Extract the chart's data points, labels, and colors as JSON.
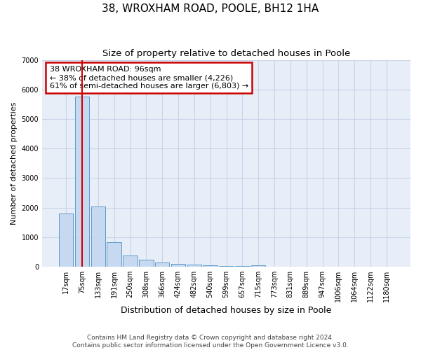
{
  "title": "38, WROXHAM ROAD, POOLE, BH12 1HA",
  "subtitle": "Size of property relative to detached houses in Poole",
  "xlabel": "Distribution of detached houses by size in Poole",
  "ylabel": "Number of detached properties",
  "categories": [
    "17sqm",
    "75sqm",
    "133sqm",
    "191sqm",
    "250sqm",
    "308sqm",
    "366sqm",
    "424sqm",
    "482sqm",
    "540sqm",
    "599sqm",
    "657sqm",
    "715sqm",
    "773sqm",
    "831sqm",
    "889sqm",
    "947sqm",
    "1006sqm",
    "1064sqm",
    "1122sqm",
    "1180sqm"
  ],
  "values": [
    1800,
    5750,
    2050,
    820,
    375,
    230,
    150,
    100,
    70,
    55,
    35,
    20,
    50,
    0,
    0,
    0,
    0,
    0,
    0,
    0,
    0
  ],
  "bar_color": "#c6d9f0",
  "bar_edge_color": "#4a90c4",
  "annotation_text": "38 WROXHAM ROAD: 96sqm\n← 38% of detached houses are smaller (4,226)\n61% of semi-detached houses are larger (6,803) →",
  "annotation_box_color": "#ffffff",
  "annotation_box_edge_color": "#cc0000",
  "vline_color": "#cc0000",
  "vline_x": 1.0,
  "ylim": [
    0,
    7000
  ],
  "yticks": [
    0,
    1000,
    2000,
    3000,
    4000,
    5000,
    6000,
    7000
  ],
  "grid_color": "#c8d4e8",
  "bg_color": "#e8eef8",
  "footer_line1": "Contains HM Land Registry data © Crown copyright and database right 2024.",
  "footer_line2": "Contains public sector information licensed under the Open Government Licence v3.0.",
  "title_fontsize": 11,
  "subtitle_fontsize": 9.5,
  "xlabel_fontsize": 9,
  "ylabel_fontsize": 8,
  "tick_fontsize": 7,
  "footer_fontsize": 6.5
}
